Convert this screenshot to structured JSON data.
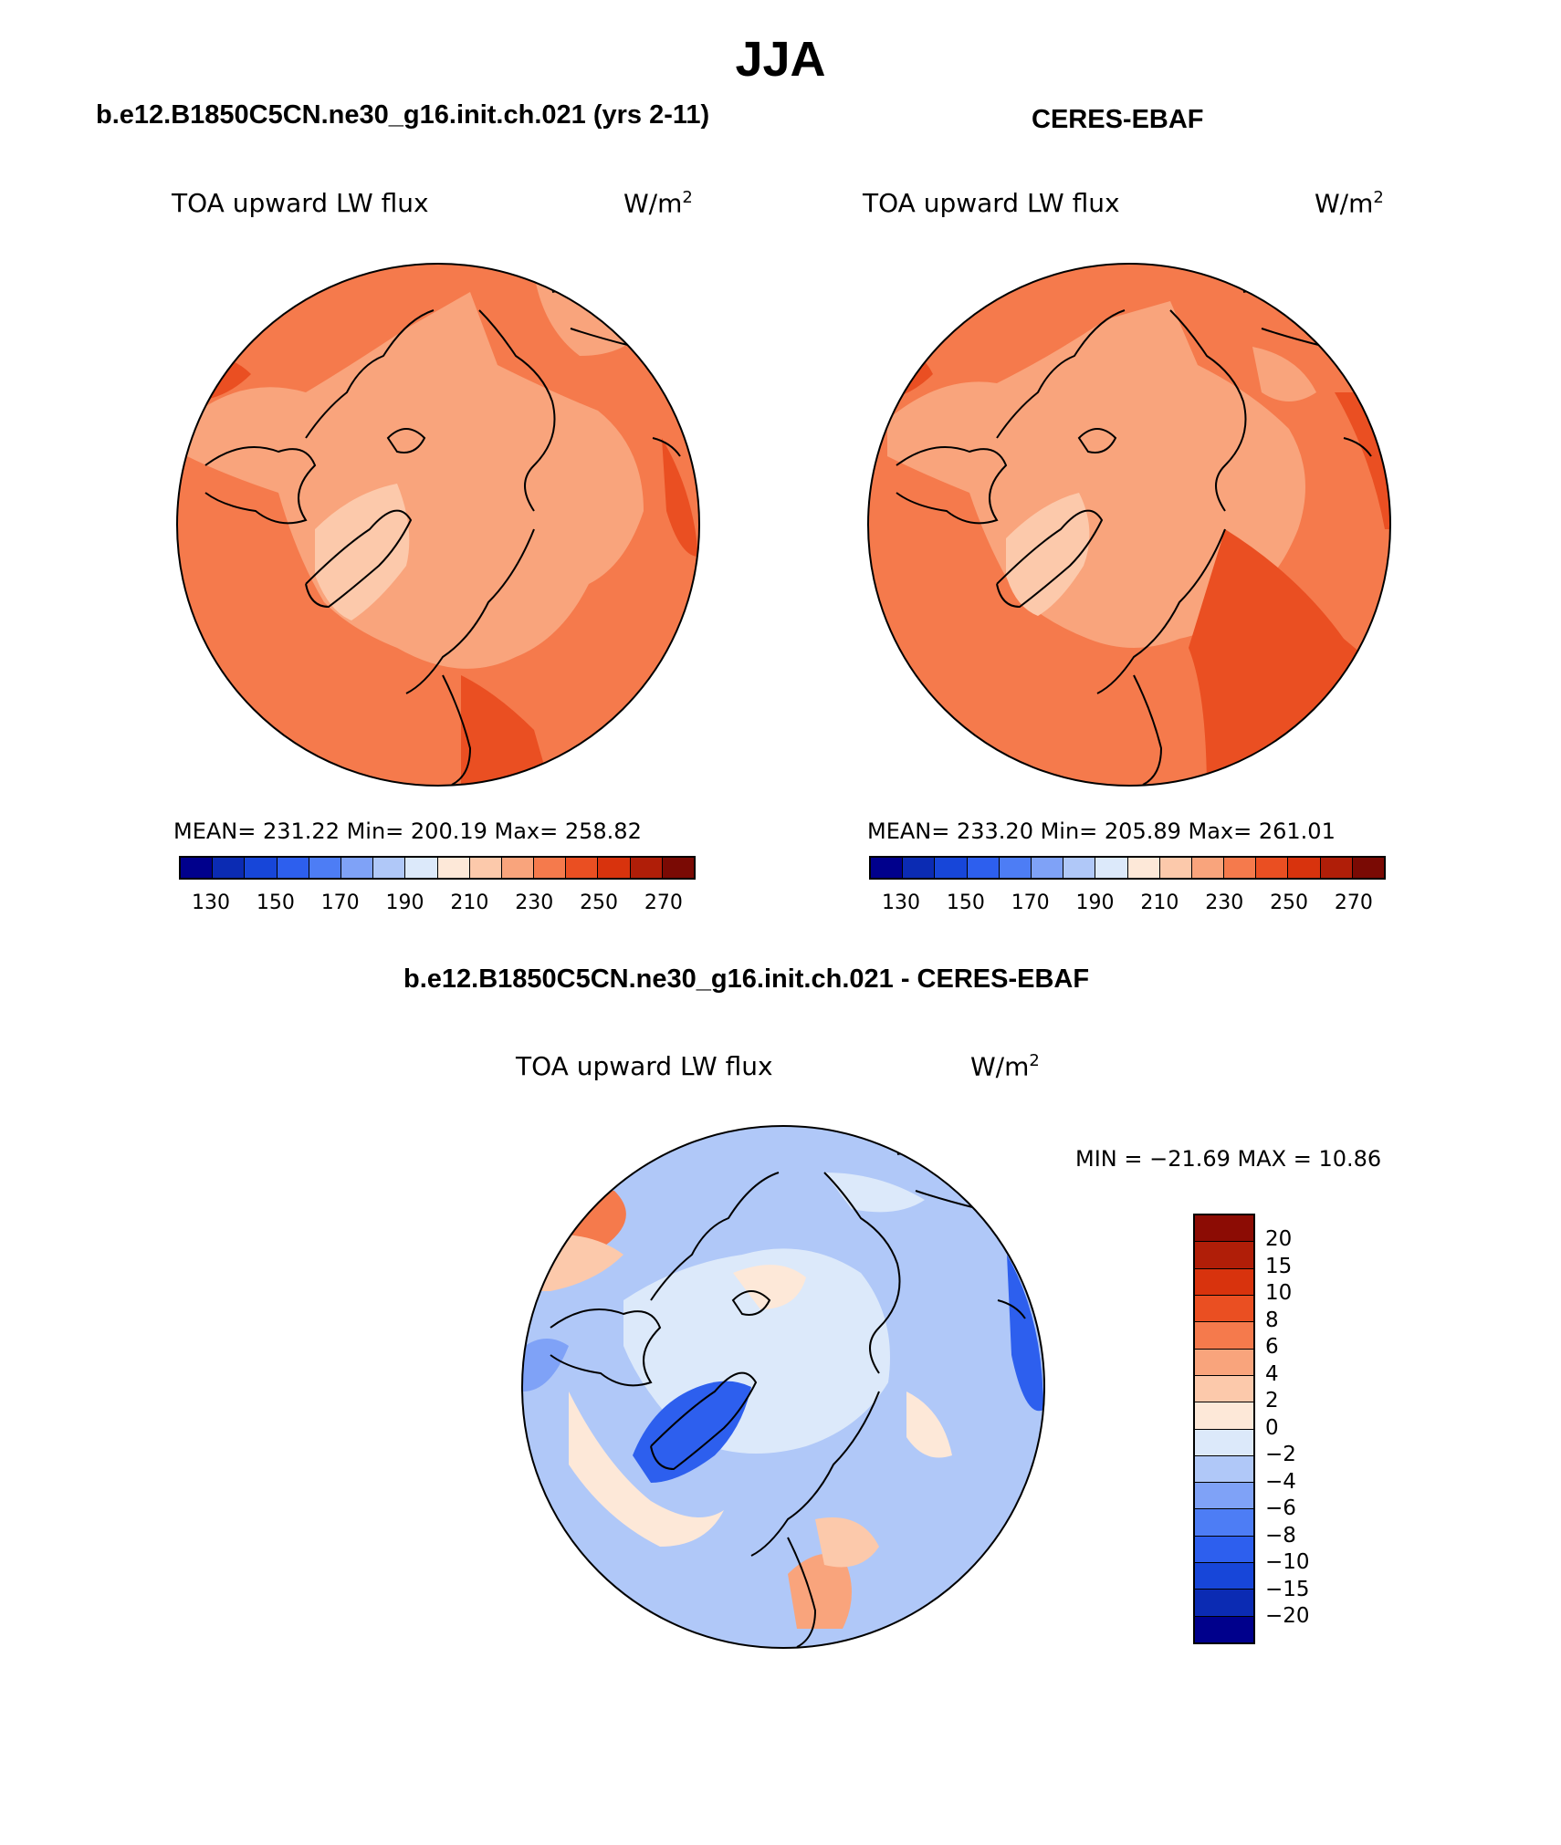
{
  "title": "JJA",
  "panels": [
    {
      "id": "model",
      "title": "b.e12.B1850C5CN.ne30_g16.init.ch.021 (yrs 2-11)",
      "variable": "TOA upward LW flux",
      "units_base": "W/m",
      "units_exp": "2",
      "stats": "MEAN= 231.22   Min= 200.19   Max= 258.82",
      "colorbar_ticks": [
        "130",
        "150",
        "170",
        "190",
        "210",
        "230",
        "250",
        "270"
      ]
    },
    {
      "id": "obs",
      "title": "CERES-EBAF",
      "variable": "TOA upward LW flux",
      "units_base": "W/m",
      "units_exp": "2",
      "stats": "MEAN= 233.20   Min= 205.89   Max= 261.01",
      "colorbar_ticks": [
        "130",
        "150",
        "170",
        "190",
        "210",
        "230",
        "250",
        "270"
      ]
    }
  ],
  "difference": {
    "title": "b.e12.B1850C5CN.ne30_g16.init.ch.021 - CERES-EBAF",
    "variable": "TOA upward LW flux",
    "units_base": "W/m",
    "units_exp": "2",
    "stats": "MIN = −21.69 MAX =   10.86",
    "colorbar_labels": [
      "20",
      "15",
      "10",
      "8",
      "6",
      "4",
      "2",
      "0",
      "−2",
      "−4",
      "−6",
      "−8",
      "−10",
      "−15",
      "−20"
    ]
  },
  "colors": {
    "abs_scale": [
      "#00008c",
      "#0b2bb3",
      "#1746d9",
      "#2d5fee",
      "#4d7df5",
      "#7fa2f7",
      "#b0c8f8",
      "#dce9fa",
      "#fde8d8",
      "#fcc9ab",
      "#f9a47c",
      "#f57a4c",
      "#ea4f22",
      "#d8330d",
      "#b01e08",
      "#7a0a04"
    ],
    "diff_scale": [
      "#8c0c04",
      "#b01e08",
      "#d8330d",
      "#ea4f22",
      "#f57a4c",
      "#f9a47c",
      "#fcc9ab",
      "#fde8d8",
      "#dce9fa",
      "#b0c8f8",
      "#7fa2f7",
      "#4d7df5",
      "#2d5fee",
      "#1746d9",
      "#0b2bb3",
      "#00008c"
    ]
  }
}
